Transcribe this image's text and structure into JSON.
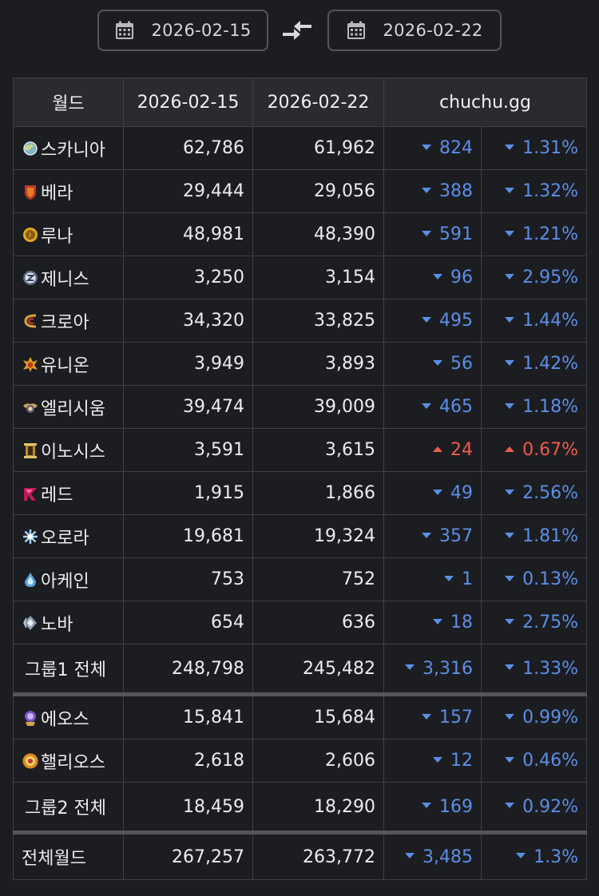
{
  "date_range": {
    "from": "2026-02-15",
    "to": "2026-02-22",
    "calendar_icon": "calendar-icon",
    "swap_icon": "swap-arrows-icon"
  },
  "table": {
    "headers": {
      "world": "월드",
      "date_from": "2026-02-15",
      "date_to": "2026-02-22",
      "source": "chuchu.gg"
    },
    "rows": [
      {
        "name": "스카니아",
        "icon": "scania-world-icon",
        "from": "62,786",
        "to": "61,962",
        "diff": "824",
        "pct": "1.31%",
        "dir": "down"
      },
      {
        "name": "베라",
        "icon": "bera-world-icon",
        "from": "29,444",
        "to": "29,056",
        "diff": "388",
        "pct": "1.32%",
        "dir": "down"
      },
      {
        "name": "루나",
        "icon": "luna-world-icon",
        "from": "48,981",
        "to": "48,390",
        "diff": "591",
        "pct": "1.21%",
        "dir": "down"
      },
      {
        "name": "제니스",
        "icon": "zenith-world-icon",
        "from": "3,250",
        "to": "3,154",
        "diff": "96",
        "pct": "2.95%",
        "dir": "down"
      },
      {
        "name": "크로아",
        "icon": "croa-world-icon",
        "from": "34,320",
        "to": "33,825",
        "diff": "495",
        "pct": "1.44%",
        "dir": "down"
      },
      {
        "name": "유니온",
        "icon": "union-world-icon",
        "from": "3,949",
        "to": "3,893",
        "diff": "56",
        "pct": "1.42%",
        "dir": "down"
      },
      {
        "name": "엘리시움",
        "icon": "elysium-world-icon",
        "from": "39,474",
        "to": "39,009",
        "diff": "465",
        "pct": "1.18%",
        "dir": "down"
      },
      {
        "name": "이노시스",
        "icon": "enosis-world-icon",
        "from": "3,591",
        "to": "3,615",
        "diff": "24",
        "pct": "0.67%",
        "dir": "up"
      },
      {
        "name": "레드",
        "icon": "red-world-icon",
        "from": "1,915",
        "to": "1,866",
        "diff": "49",
        "pct": "2.56%",
        "dir": "down"
      },
      {
        "name": "오로라",
        "icon": "aurora-world-icon",
        "from": "19,681",
        "to": "19,324",
        "diff": "357",
        "pct": "1.81%",
        "dir": "down"
      },
      {
        "name": "아케인",
        "icon": "arcane-world-icon",
        "from": "753",
        "to": "752",
        "diff": "1",
        "pct": "0.13%",
        "dir": "down"
      },
      {
        "name": "노바",
        "icon": "nova-world-icon",
        "from": "654",
        "to": "636",
        "diff": "18",
        "pct": "2.75%",
        "dir": "down"
      }
    ],
    "group1_total": {
      "name": "그룹1 전체",
      "from": "248,798",
      "to": "245,482",
      "diff": "3,316",
      "pct": "1.33%",
      "dir": "down"
    },
    "group2_rows": [
      {
        "name": "에오스",
        "icon": "eos-world-icon",
        "from": "15,841",
        "to": "15,684",
        "diff": "157",
        "pct": "0.99%",
        "dir": "down"
      },
      {
        "name": "핼리오스",
        "icon": "helios-world-icon",
        "from": "2,618",
        "to": "2,606",
        "diff": "12",
        "pct": "0.46%",
        "dir": "down"
      }
    ],
    "group2_total": {
      "name": "그룹2 전체",
      "from": "18,459",
      "to": "18,290",
      "diff": "169",
      "pct": "0.92%",
      "dir": "down"
    },
    "grand_total": {
      "name": "전체월드",
      "from": "267,257",
      "to": "263,772",
      "diff": "3,485",
      "pct": "1.3%",
      "dir": "down"
    }
  },
  "colors": {
    "background": "#1c1d21",
    "decrease": "#5a8fe6",
    "increase": "#ef5b4c",
    "header_bg": "#2a2b30"
  }
}
